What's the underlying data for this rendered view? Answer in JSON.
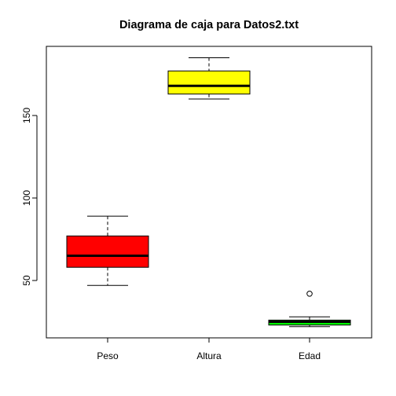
{
  "chart_data": {
    "type": "boxplot",
    "title": "Diagrama de caja para Datos2.txt",
    "xlabel": "",
    "ylabel": "",
    "categories": [
      "Peso",
      "Altura",
      "Edad"
    ],
    "ylim": [
      15,
      177
    ],
    "yticks": [
      50,
      100,
      150
    ],
    "boxes": [
      {
        "name": "Peso",
        "color": "#ff0000",
        "whisker_low": 47,
        "q1": 58,
        "median": 65,
        "q3": 77,
        "whisker_high": 89,
        "outliers": []
      },
      {
        "name": "Altura",
        "color": "#ffff00",
        "whisker_low": 160,
        "q1": 163,
        "median": 168,
        "q3": 177,
        "whisker_high": 185,
        "outliers": []
      },
      {
        "name": "Edad",
        "color": "#00ff00",
        "whisker_low": 22,
        "q1": 23,
        "median": 25,
        "q3": 26,
        "whisker_high": 28,
        "outliers": [
          42
        ]
      }
    ],
    "grid": false
  }
}
